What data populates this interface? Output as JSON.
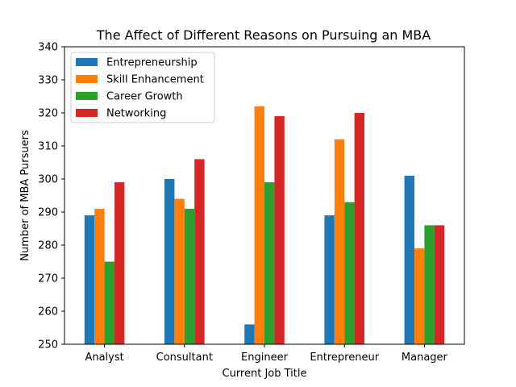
{
  "chart_data": {
    "type": "bar",
    "title": "The Affect of Different Reasons on Pursuing an MBA",
    "xlabel": "Current Job Title",
    "ylabel": "Number of MBA Pursuers",
    "categories": [
      "Analyst",
      "Consultant",
      "Engineer",
      "Entrepreneur",
      "Manager"
    ],
    "ylim": [
      250,
      340
    ],
    "yticks": [
      250,
      260,
      270,
      280,
      290,
      300,
      310,
      320,
      330,
      340
    ],
    "legend_position": "top-left",
    "grid": false,
    "series": [
      {
        "name": "Entrepreneurship",
        "color": "#1f77b4",
        "values": [
          289,
          300,
          256,
          289,
          301
        ]
      },
      {
        "name": "Skill Enhancement",
        "color": "#ff7f0e",
        "values": [
          291,
          294,
          322,
          312,
          279
        ]
      },
      {
        "name": "Career Growth",
        "color": "#2ca02c",
        "values": [
          275,
          291,
          299,
          293,
          286
        ]
      },
      {
        "name": "Networking",
        "color": "#d62728",
        "values": [
          299,
          306,
          319,
          320,
          286
        ]
      }
    ]
  }
}
